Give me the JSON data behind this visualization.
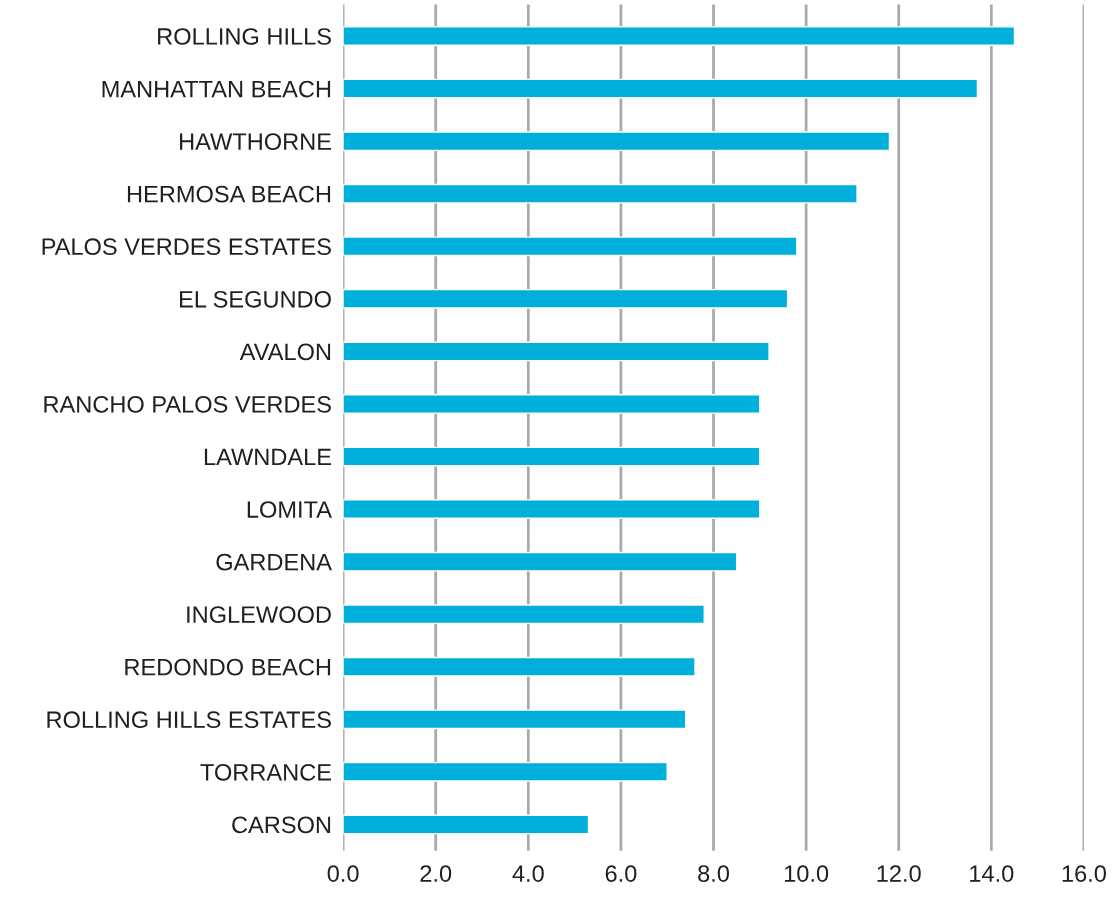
{
  "chart_data": {
    "type": "bar",
    "orientation": "horizontal",
    "categories": [
      "ROLLING HILLS",
      "MANHATTAN BEACH",
      "HAWTHORNE",
      "HERMOSA BEACH",
      "PALOS VERDES ESTATES",
      "EL SEGUNDO",
      "AVALON",
      "RANCHO PALOS VERDES",
      "LAWNDALE",
      "LOMITA",
      "GARDENA",
      "INGLEWOOD",
      "REDONDO BEACH",
      "ROLLING HILLS ESTATES",
      "TORRANCE",
      "CARSON"
    ],
    "values": [
      14.5,
      13.7,
      11.8,
      11.1,
      9.8,
      9.6,
      9.2,
      9.0,
      9.0,
      9.0,
      8.5,
      7.8,
      7.6,
      7.4,
      7.0,
      5.3
    ],
    "color": "#00b0da",
    "xlim": [
      0,
      16
    ],
    "xticks": [
      {
        "value": 0,
        "label": "0.0"
      },
      {
        "value": 2,
        "label": "2.0"
      },
      {
        "value": 4,
        "label": "4.0"
      },
      {
        "value": 6,
        "label": "6.0"
      },
      {
        "value": 8,
        "label": "8.0"
      },
      {
        "value": 10,
        "label": "10.0"
      },
      {
        "value": 12,
        "label": "12.0"
      },
      {
        "value": 14,
        "label": "14.0"
      },
      {
        "value": 16,
        "label": "16.0"
      }
    ],
    "grid": "x"
  }
}
